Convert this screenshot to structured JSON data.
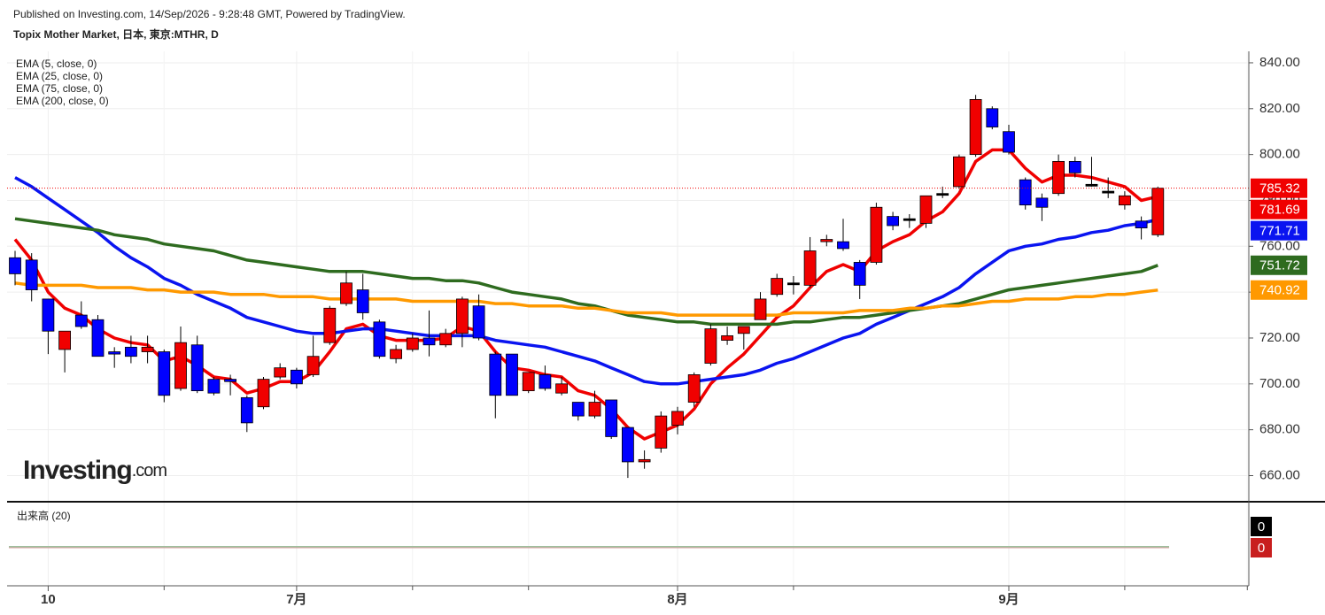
{
  "header": {
    "published": "Published on Investing.com, 14/Sep/2026 - 9:28:48 GMT, Powered by TradingView.",
    "title": "Topix Mother Market, 日本, 東京:MTHR, D"
  },
  "logo": {
    "name": "Investing",
    "suffix": ".com"
  },
  "chart_data": {
    "type": "candlestick",
    "ylim": [
      649,
      845
    ],
    "yticks": [
      {
        "value": 660,
        "label": "660.00"
      },
      {
        "value": 680,
        "label": "680.00"
      },
      {
        "value": 700,
        "label": "700.00"
      },
      {
        "value": 720,
        "label": "720.00"
      },
      {
        "value": 740,
        "label": "740.00"
      },
      {
        "value": 760,
        "label": "760.00"
      },
      {
        "value": 780,
        "label": "780.00"
      },
      {
        "value": 800,
        "label": "800.00"
      },
      {
        "value": 820,
        "label": "820.00"
      },
      {
        "value": 840,
        "label": "840.00"
      }
    ],
    "xticks": [
      {
        "value": 2,
        "label": "10"
      },
      {
        "value": 17,
        "label": "7月"
      },
      {
        "value": 40,
        "label": "8月"
      },
      {
        "value": 60,
        "label": "9月"
      }
    ],
    "x_minor_ticks": [
      9,
      24,
      31,
      47,
      67,
      74.4
    ],
    "colors": {
      "up": "#f00000",
      "down": "#0000ff",
      "doji": "#000000"
    },
    "candles": {
      "open": [
        755,
        754,
        737,
        715,
        730,
        728,
        714,
        716,
        714,
        714,
        698,
        717,
        702,
        702,
        694,
        690,
        703,
        706,
        704,
        718,
        735,
        741,
        727,
        711,
        715,
        720,
        717,
        722,
        734,
        713,
        713,
        697,
        704,
        696,
        692,
        686,
        693,
        681,
        666,
        672,
        682,
        692,
        709,
        719,
        722,
        728,
        739,
        744,
        743,
        762,
        762,
        753,
        753,
        773,
        772,
        770,
        783,
        786,
        800,
        820,
        810,
        789,
        781,
        783,
        797,
        787,
        784,
        778,
        771,
        765
      ],
      "high": [
        758,
        757,
        737,
        723,
        736,
        730,
        716,
        721,
        721,
        715,
        725,
        721,
        703,
        704,
        695,
        703,
        709,
        707,
        721,
        734,
        749,
        748,
        728,
        717,
        722,
        732,
        724,
        738,
        739,
        714,
        713,
        705,
        708,
        703,
        692,
        697,
        693,
        681,
        671,
        688,
        690,
        705,
        726,
        725,
        725,
        740,
        748,
        747,
        764,
        765,
        772,
        754,
        779,
        775,
        774,
        782,
        786,
        800,
        826,
        821,
        813,
        790,
        783,
        800,
        799,
        799,
        790,
        784,
        773,
        786
      ],
      "low": [
        743,
        736,
        713,
        705,
        724,
        712,
        707,
        709,
        709,
        692,
        697,
        696,
        695,
        695,
        679,
        689,
        702,
        698,
        703,
        717,
        734,
        728,
        711,
        709,
        714,
        712,
        716,
        716,
        719,
        685,
        695,
        696,
        697,
        695,
        684,
        685,
        676,
        659,
        663,
        670,
        678,
        690,
        708,
        717,
        715,
        728,
        738,
        739,
        742,
        760,
        758,
        737,
        752,
        767,
        768,
        768,
        781,
        785,
        799,
        811,
        800,
        776,
        771,
        782,
        790,
        786,
        781,
        776,
        763,
        764
      ],
      "close": [
        748,
        741,
        723,
        723,
        725,
        712,
        713,
        712,
        716,
        695,
        718,
        697,
        696,
        701,
        683,
        702,
        707,
        700,
        712,
        733,
        744,
        731,
        712,
        715,
        720,
        717,
        722,
        737,
        720,
        695,
        695,
        705,
        698,
        700,
        686,
        692,
        677,
        666,
        667,
        686,
        688,
        704,
        724,
        721,
        725,
        737,
        746,
        744,
        758,
        763,
        759,
        743,
        777,
        769,
        772,
        782,
        783,
        799,
        824,
        812,
        801,
        778,
        777,
        797,
        792,
        787,
        784,
        782,
        768,
        785.32
      ]
    },
    "series": [
      {
        "name": "EMA (5, close, 0)",
        "color": "#f00000",
        "values": [
          763,
          754,
          740,
          733,
          730,
          724,
          720,
          718,
          717,
          710,
          712,
          708,
          703,
          702,
          696,
          698,
          701,
          701,
          705,
          714,
          724,
          726,
          721,
          719,
          719,
          719,
          720,
          725,
          723,
          714,
          707,
          706,
          704,
          703,
          697,
          695,
          689,
          681,
          676,
          679,
          682,
          689,
          700,
          707,
          713,
          721,
          729,
          734,
          742,
          749,
          752,
          749,
          758,
          762,
          765,
          771,
          775,
          783,
          797,
          802,
          802,
          794,
          788,
          791,
          791,
          790,
          788,
          786,
          780,
          781.69
        ]
      },
      {
        "name": "EMA (25, close, 0)",
        "color": "#0a14f0",
        "values": [
          790,
          786,
          781,
          776,
          771,
          766,
          760,
          755,
          751,
          746,
          743,
          739,
          736,
          733,
          729,
          727,
          725,
          723,
          722,
          722,
          723,
          724,
          724,
          723,
          722,
          721,
          721,
          721,
          721,
          719,
          718,
          717,
          716,
          714,
          712,
          710,
          707,
          704,
          701,
          700,
          700,
          701,
          702,
          703,
          704,
          706,
          709,
          711,
          714,
          717,
          720,
          722,
          726,
          729,
          732,
          735,
          738,
          742,
          748,
          753,
          758,
          760,
          761,
          763,
          764,
          766,
          767,
          769,
          770,
          771.71
        ]
      },
      {
        "name": "EMA (75, close, 0)",
        "color": "#2e6b1f",
        "values": [
          772,
          771,
          770,
          769,
          768,
          767,
          765,
          764,
          763,
          761,
          760,
          759,
          758,
          756,
          754,
          753,
          752,
          751,
          750,
          749,
          749,
          749,
          748,
          747,
          746,
          746,
          745,
          745,
          744,
          742,
          740,
          739,
          738,
          737,
          735,
          734,
          732,
          730,
          729,
          728,
          727,
          727,
          726,
          726,
          726,
          726,
          726,
          727,
          727,
          728,
          729,
          729,
          730,
          731,
          732,
          733,
          734,
          735,
          737,
          739,
          741,
          742,
          743,
          744,
          745,
          746,
          747,
          748,
          749,
          751.72
        ]
      },
      {
        "name": "EMA (200, close, 0)",
        "color": "#ff9900",
        "values": [
          744,
          743,
          743,
          743,
          743,
          742,
          742,
          742,
          741,
          741,
          740,
          740,
          740,
          739,
          739,
          739,
          738,
          738,
          738,
          737,
          737,
          737,
          737,
          737,
          736,
          736,
          736,
          736,
          736,
          735,
          735,
          734,
          734,
          734,
          733,
          733,
          732,
          731,
          731,
          731,
          730,
          730,
          730,
          730,
          730,
          730,
          730,
          731,
          731,
          731,
          731,
          732,
          732,
          732,
          733,
          733,
          734,
          734,
          735,
          736,
          736,
          737,
          737,
          737,
          738,
          738,
          739,
          739,
          740,
          740.92
        ]
      }
    ],
    "volume": {
      "title": "出来高 (20)",
      "value": 0,
      "ma": 0
    }
  }
}
